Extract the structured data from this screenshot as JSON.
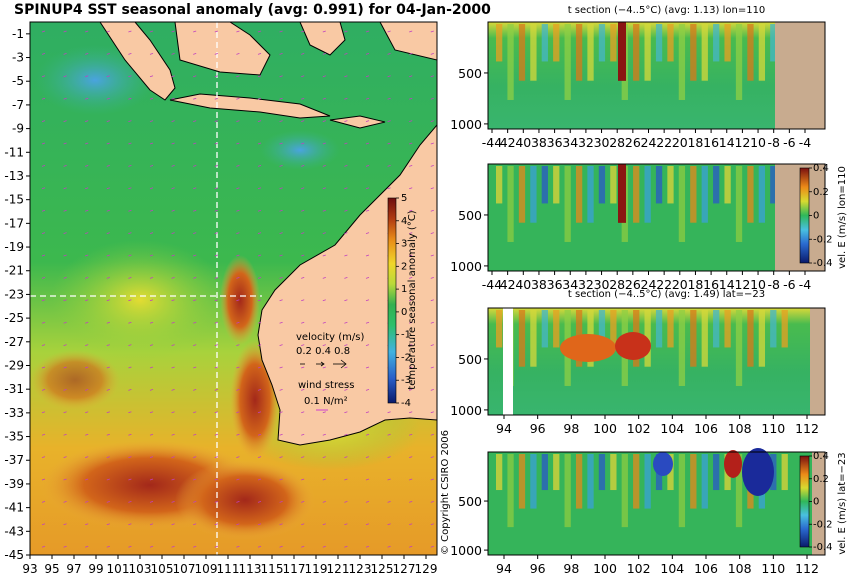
{
  "chart_data": [
    {
      "type": "heatmap",
      "title": "SPINUP4 SST seasonal anomaly (avg: 0.991) for 04-Jan-2000",
      "x_ticks": [
        "93",
        "95",
        "97",
        "99",
        "101",
        "103",
        "105",
        "107",
        "109",
        "111",
        "113",
        "115",
        "117",
        "119",
        "121",
        "123",
        "125",
        "127",
        "129"
      ],
      "y_ticks": [
        "-1",
        "-3",
        "-5",
        "-7",
        "-9",
        "-11",
        "-13",
        "-15",
        "-17",
        "-19",
        "-21",
        "-23",
        "-25",
        "-27",
        "-29",
        "-31",
        "-33",
        "-35",
        "-37",
        "-39",
        "-41",
        "-43",
        "-45"
      ],
      "xlim": [
        93,
        130
      ],
      "ylim": [
        -45,
        0
      ],
      "colorbar": {
        "label": "temperature seasonal anomaly (°C)",
        "ticks": [
          "5",
          "4",
          "3",
          "2",
          "1",
          "0",
          "-1",
          "-2",
          "-3",
          "-4"
        ],
        "range": [
          -4,
          5
        ]
      },
      "section_lines": {
        "lon": 110,
        "lat": -23
      },
      "legend": {
        "velocity_label": "velocity (m/s)",
        "velocity_values": "0.2 0.4 0.8",
        "wind_label": "wind stress",
        "wind_value": "0.1 N/m²"
      },
      "copyright": "© Copyright CSIRO 2006"
    },
    {
      "type": "heatmap",
      "title": "t section (−4..5°C) (avg: 1.13) lon=110",
      "x_ticks": [
        "-44",
        "42",
        "40",
        "38",
        "36",
        "34",
        "32",
        "30",
        "28",
        "26",
        "24",
        "22",
        "20",
        "18",
        "16",
        "14",
        "12",
        "10",
        "-8",
        "-6",
        "-4"
      ],
      "y_ticks": [
        "500",
        "1000"
      ],
      "ylim": [
        1050,
        0
      ]
    },
    {
      "type": "heatmap",
      "title": "",
      "x_ticks": [
        "-44",
        "42",
        "40",
        "38",
        "36",
        "34",
        "32",
        "30",
        "28",
        "26",
        "24",
        "22",
        "20",
        "18",
        "16",
        "14",
        "12",
        "10",
        "-8",
        "-6",
        "-4"
      ],
      "y_ticks": [
        "500",
        "1000"
      ],
      "ylim": [
        1050,
        0
      ],
      "colorbar": {
        "label": "vel. E (m/s) lon=110",
        "ticks": [
          "0.4",
          "0.2",
          "0",
          "-0.2",
          "-0.4"
        ],
        "range": [
          -0.4,
          0.4
        ]
      }
    },
    {
      "type": "heatmap",
      "title": "t section (−4..5°C) (avg: 1.49) lat=−23",
      "x_ticks": [
        "94",
        "96",
        "98",
        "100",
        "102",
        "104",
        "106",
        "108",
        "110",
        "112"
      ],
      "y_ticks": [
        "500",
        "1000"
      ],
      "ylim": [
        1050,
        0
      ]
    },
    {
      "type": "heatmap",
      "title": "",
      "x_ticks": [
        "94",
        "96",
        "98",
        "100",
        "102",
        "104",
        "106",
        "108",
        "110",
        "112"
      ],
      "y_ticks": [
        "500",
        "1000"
      ],
      "ylim": [
        1050,
        0
      ],
      "colorbar": {
        "label": "vel. E (m/s) lat=−23",
        "ticks": [
          "0.4",
          "0.2",
          "0",
          "-0.2",
          "-0.4"
        ],
        "range": [
          -0.4,
          0.4
        ]
      }
    }
  ],
  "colors": {
    "land": "#f9c9a4",
    "seafloor": "#c8ab8f",
    "ocean_base": "#2fb25a",
    "warm": "#e07a10",
    "hot": "#8e1b12",
    "cool": "#3aa7d8",
    "cold": "#1a2fa0"
  }
}
